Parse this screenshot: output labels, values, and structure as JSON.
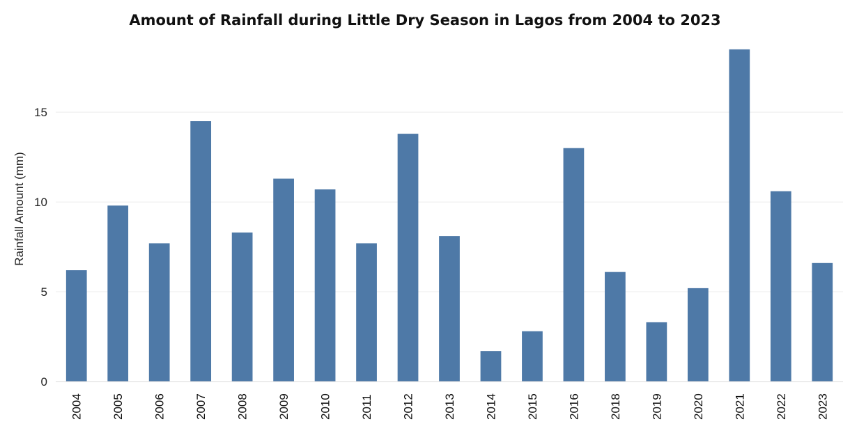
{
  "chart_data": {
    "type": "bar",
    "title": "Amount of Rainfall during Little Dry Season in Lagos from 2004 to 2023",
    "xlabel": "",
    "ylabel": "Rainfall Amount (mm)",
    "categories": [
      "2004",
      "2005",
      "2006",
      "2007",
      "2008",
      "2009",
      "2010",
      "2011",
      "2012",
      "2013",
      "2014",
      "2015",
      "2016",
      "2018",
      "2019",
      "2020",
      "2021",
      "2022",
      "2023"
    ],
    "values": [
      6.2,
      9.8,
      7.7,
      14.5,
      8.3,
      11.3,
      10.7,
      7.7,
      13.8,
      8.1,
      1.7,
      2.8,
      13.0,
      6.1,
      3.3,
      5.2,
      18.5,
      10.6,
      6.6
    ],
    "ylim": [
      0,
      19
    ],
    "yticks": [
      0,
      5,
      10,
      15
    ],
    "grid": true,
    "colors": {
      "bar": "#4e79a7"
    }
  }
}
